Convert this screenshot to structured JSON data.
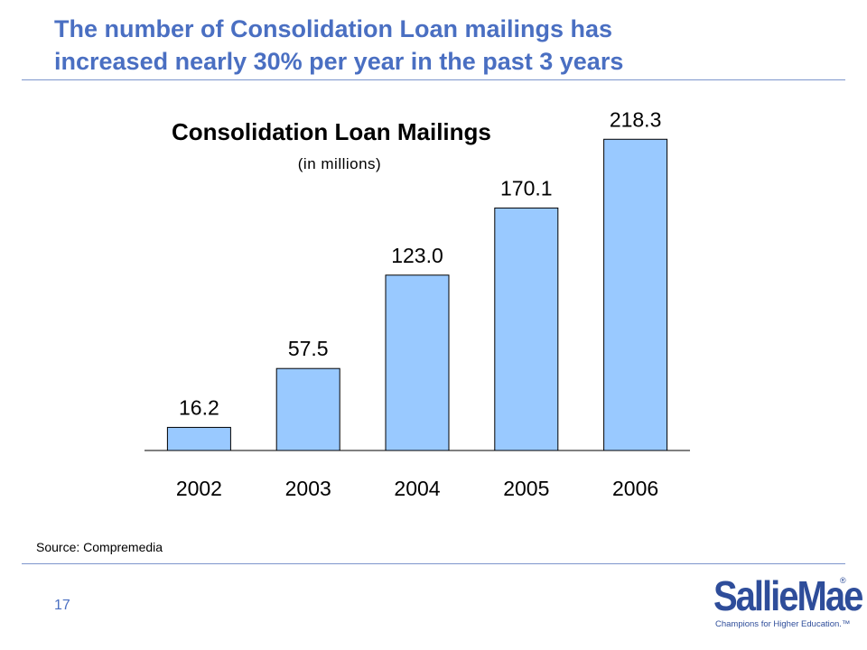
{
  "slide": {
    "title_lines": [
      "The number of Consolidation Loan mailings has",
      "increased nearly 30% per year in the past 3 years"
    ],
    "source": "Source: Compremedia",
    "page_number": "17"
  },
  "logo": {
    "wordmark": "SallieMae",
    "registered": "®",
    "tagline": "Champions for Higher Education.™"
  },
  "colors": {
    "title": "#4a6fc2",
    "bar_fill": "#99c9ff",
    "bar_stroke": "#000000",
    "rule": "#7d96cc",
    "logo": "#2e4d9a"
  },
  "chart_data": {
    "type": "bar",
    "title": "Consolidation Loan Mailings",
    "subtitle": "(in millions)",
    "categories": [
      "2002",
      "2003",
      "2004",
      "2005",
      "2006"
    ],
    "values": [
      16.2,
      57.5,
      123.0,
      170.1,
      218.3
    ],
    "value_labels": [
      "16.2",
      "57.5",
      "123.0",
      "170.1",
      "218.3"
    ],
    "xlabel": "",
    "ylabel": "",
    "ylim": [
      0,
      240
    ],
    "grid": false,
    "legend": "none"
  }
}
